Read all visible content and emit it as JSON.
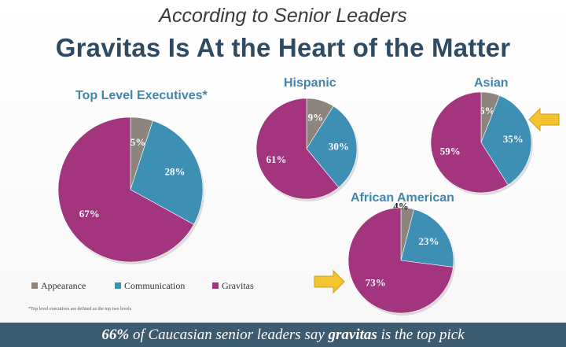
{
  "header": {
    "subtitle": "According to Senior Leaders",
    "title": "Gravitas Is At the Heart of the Matter"
  },
  "colors": {
    "appearance": "#8d847e",
    "communication": "#3d8fb4",
    "gravitas": "#a3347e",
    "title": "#2e4b63",
    "chart_title": "#3f86b0",
    "banner": "#3c5a70",
    "arrow": "#f4c430"
  },
  "legend": {
    "appearance": "Appearance",
    "communication": "Communication",
    "gravitas": "Gravitas"
  },
  "footnote": "*Top level executives are defined as the top two levels",
  "banner": {
    "pct": "66%",
    "text_a": " of Caucasian senior leaders say ",
    "emph": "gravitas",
    "text_b": " is the top pick"
  },
  "chart_data": [
    {
      "type": "pie",
      "title": "Top Level Executives*",
      "categories": [
        "Appearance",
        "Communication",
        "Gravitas"
      ],
      "values": [
        5,
        28,
        67
      ],
      "labels": [
        "5%",
        "28%",
        "67%"
      ]
    },
    {
      "type": "pie",
      "title": "Hispanic",
      "categories": [
        "Appearance",
        "Communication",
        "Gravitas"
      ],
      "values": [
        9,
        30,
        61
      ],
      "labels": [
        "9%",
        "30%",
        "61%"
      ]
    },
    {
      "type": "pie",
      "title": "Asian",
      "categories": [
        "Appearance",
        "Communication",
        "Gravitas"
      ],
      "values": [
        6,
        35,
        59
      ],
      "labels": [
        "6%",
        "35%",
        "59%"
      ],
      "highlight": "Communication"
    },
    {
      "type": "pie",
      "title": "African American",
      "categories": [
        "Appearance",
        "Communication",
        "Gravitas"
      ],
      "values": [
        4,
        23,
        73
      ],
      "labels": [
        "4%",
        "23%",
        "73%"
      ],
      "highlight": "Gravitas"
    }
  ]
}
